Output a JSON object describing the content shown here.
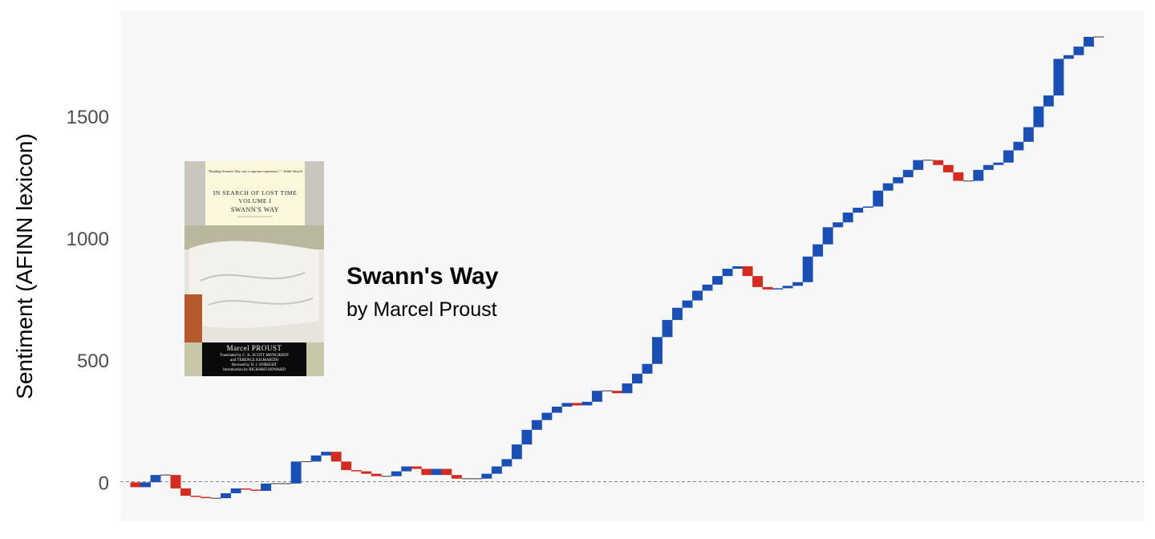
{
  "chart_data": {
    "type": "waterfall",
    "ylabel": "Sentiment (AFINN lexicon)",
    "yticks": [
      0,
      500,
      1000,
      1500
    ],
    "ylim": [
      -160,
      1930
    ],
    "xlim": [
      0,
      102
    ],
    "grid": false,
    "zero_line": "dashed",
    "colors": {
      "positive": "#1a4fb5",
      "negative": "#d42a20",
      "panel_bg": "#f7f7f7"
    },
    "annotation": {
      "title": "Swann's Way",
      "subtitle": "by Marcel Proust"
    },
    "cover": {
      "quote": "\"Reading Swann's Way was a supreme experience.\" - Edith Sitwell",
      "series": "IN SEARCH OF LOST TIME",
      "volume": "VOLUME I",
      "title": "SWANN'S WAY",
      "author": "Marcel PROUST",
      "credits": [
        "Translated by C. K. SCOTT MONCRIEFF",
        "and TERENCE KILMARTIN",
        "Revised by D. J. ENRIGHT",
        "Introduction by RICHARD HOWARD"
      ]
    },
    "cumulative": [
      0,
      -20,
      0,
      30,
      30,
      -25,
      -55,
      -60,
      -65,
      -65,
      -45,
      -25,
      -30,
      -35,
      -5,
      -5,
      -5,
      85,
      85,
      110,
      125,
      85,
      50,
      45,
      35,
      25,
      25,
      45,
      65,
      55,
      30,
      55,
      30,
      15,
      15,
      15,
      35,
      65,
      95,
      155,
      215,
      255,
      285,
      310,
      325,
      315,
      330,
      375,
      375,
      365,
      405,
      445,
      485,
      595,
      665,
      715,
      745,
      785,
      810,
      845,
      875,
      885,
      845,
      800,
      790,
      795,
      805,
      820,
      925,
      975,
      1045,
      1065,
      1105,
      1125,
      1130,
      1195,
      1225,
      1250,
      1280,
      1320,
      1320,
      1300,
      1270,
      1235,
      1235,
      1280,
      1300,
      1310,
      1360,
      1395,
      1455,
      1540,
      1585,
      1735,
      1750,
      1785,
      1825,
      1825
    ]
  }
}
